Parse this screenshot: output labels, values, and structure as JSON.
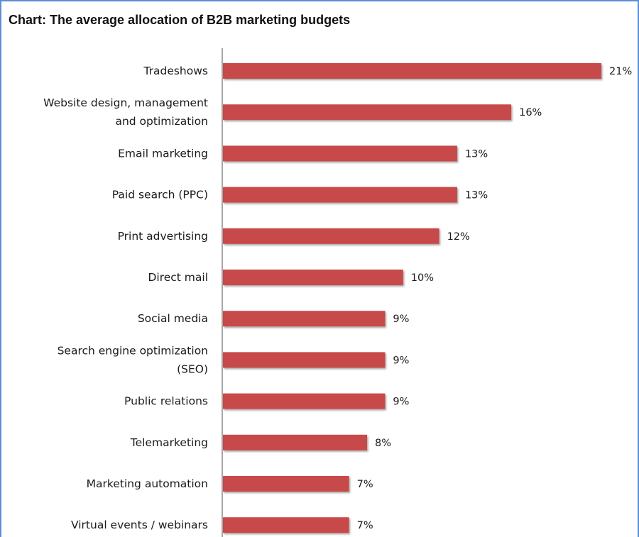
{
  "chart_data": {
    "type": "bar",
    "orientation": "horizontal",
    "title": "Chart: The average allocation of B2B marketing budgets",
    "xlabel": "",
    "ylabel": "",
    "xlim": [
      0,
      21
    ],
    "grid": false,
    "legend": "none",
    "bar_color": "#c8484a",
    "categories": [
      "Tradeshows",
      "Website design, management and optimization",
      "Email marketing",
      "Paid search (PPC)",
      "Print advertising",
      "Direct mail",
      "Social media",
      "Search engine optimization (SEO)",
      "Public relations",
      "Telemarketing",
      "Marketing automation",
      "Virtual events / webinars"
    ],
    "category_lines": [
      [
        "Tradeshows"
      ],
      [
        "Website design, management",
        "and optimization"
      ],
      [
        "Email marketing"
      ],
      [
        "Paid search (PPC)"
      ],
      [
        "Print advertising"
      ],
      [
        "Direct mail"
      ],
      [
        "Social media"
      ],
      [
        "Search engine optimization",
        "(SEO)"
      ],
      [
        "Public relations"
      ],
      [
        "Telemarketing"
      ],
      [
        "Marketing automation"
      ],
      [
        "Virtual events / webinars"
      ]
    ],
    "values": [
      21,
      16,
      13,
      13,
      12,
      10,
      9,
      9,
      9,
      8,
      7,
      7
    ],
    "value_labels": [
      "21%",
      "16%",
      "13%",
      "13%",
      "12%",
      "10%",
      "9%",
      "9%",
      "9%",
      "8%",
      "7%",
      "7%"
    ]
  }
}
